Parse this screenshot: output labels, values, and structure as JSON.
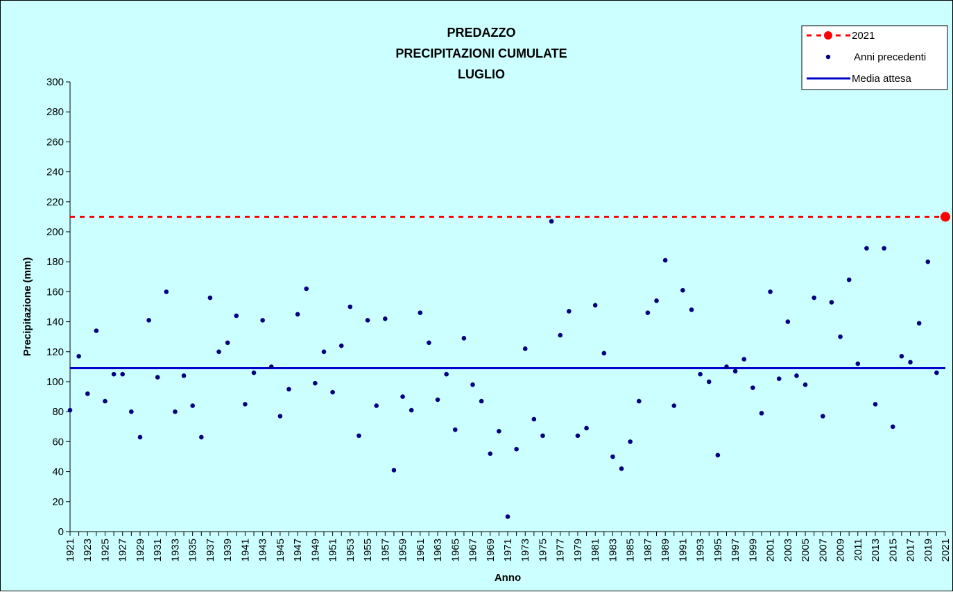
{
  "chart_data": {
    "type": "scatter",
    "title": [
      "PREDAZZO",
      "PRECIPITAZIONI CUMULATE",
      "LUGLIO"
    ],
    "xlabel": "Anno",
    "ylabel": "Precipitazione (mm)",
    "xlim": [
      1921,
      2021
    ],
    "ylim": [
      0,
      300
    ],
    "yticks": [
      0,
      20,
      40,
      60,
      80,
      100,
      120,
      140,
      160,
      180,
      200,
      220,
      240,
      260,
      280,
      300
    ],
    "xticks": [
      1921,
      1923,
      1925,
      1927,
      1929,
      1931,
      1933,
      1935,
      1937,
      1939,
      1941,
      1943,
      1945,
      1947,
      1949,
      1951,
      1953,
      1955,
      1957,
      1959,
      1961,
      1963,
      1965,
      1967,
      1969,
      1971,
      1973,
      1975,
      1977,
      1979,
      1981,
      1983,
      1985,
      1987,
      1989,
      1991,
      1993,
      1995,
      1997,
      1999,
      2001,
      2003,
      2005,
      2007,
      2009,
      2011,
      2013,
      2015,
      2017,
      2019,
      2021
    ],
    "grid": false,
    "legend_position": "top-right",
    "series": [
      {
        "name": "Anni precedenti",
        "color": "#000080",
        "style": "markers",
        "x": [
          1921,
          1922,
          1923,
          1924,
          1925,
          1926,
          1927,
          1928,
          1929,
          1930,
          1931,
          1932,
          1933,
          1934,
          1935,
          1936,
          1937,
          1938,
          1939,
          1940,
          1941,
          1942,
          1943,
          1944,
          1945,
          1946,
          1947,
          1948,
          1949,
          1950,
          1951,
          1952,
          1953,
          1954,
          1955,
          1956,
          1957,
          1958,
          1959,
          1960,
          1961,
          1962,
          1963,
          1964,
          1965,
          1966,
          1967,
          1968,
          1969,
          1970,
          1971,
          1972,
          1973,
          1974,
          1975,
          1976,
          1977,
          1978,
          1979,
          1980,
          1981,
          1982,
          1983,
          1984,
          1985,
          1986,
          1987,
          1988,
          1989,
          1990,
          1991,
          1992,
          1993,
          1994,
          1995,
          1996,
          1997,
          1998,
          1999,
          2000,
          2001,
          2002,
          2003,
          2004,
          2005,
          2006,
          2007,
          2008,
          2009,
          2010,
          2011,
          2012,
          2013,
          2014,
          2015,
          2016,
          2017,
          2018,
          2019,
          2020
        ],
        "y": [
          81,
          117,
          92,
          134,
          87,
          105,
          105,
          80,
          63,
          141,
          103,
          160,
          80,
          104,
          84,
          63,
          156,
          120,
          126,
          144,
          85,
          106,
          141,
          110,
          77,
          95,
          145,
          162,
          99,
          120,
          93,
          124,
          150,
          64,
          141,
          84,
          142,
          41,
          90,
          81,
          146,
          126,
          88,
          105,
          68,
          129,
          98,
          87,
          52,
          67,
          10,
          55,
          122,
          75,
          64,
          207,
          131,
          147,
          64,
          69,
          151,
          119,
          50,
          42,
          60,
          87,
          146,
          154,
          181,
          84,
          161,
          148,
          105,
          100,
          51,
          110,
          107,
          115,
          96,
          79,
          160,
          102,
          140,
          104,
          98,
          156,
          77,
          153,
          130,
          168,
          112,
          189,
          85,
          189,
          70,
          117,
          113,
          139,
          180,
          106
        ]
      },
      {
        "name": "2021",
        "color": "#ff0000",
        "style": "marker-with-dashed-line",
        "x": [
          2021
        ],
        "y": [
          210
        ]
      },
      {
        "name": "Media attesa",
        "color": "#0000cc",
        "style": "horizontal-line",
        "y": 109
      }
    ]
  }
}
